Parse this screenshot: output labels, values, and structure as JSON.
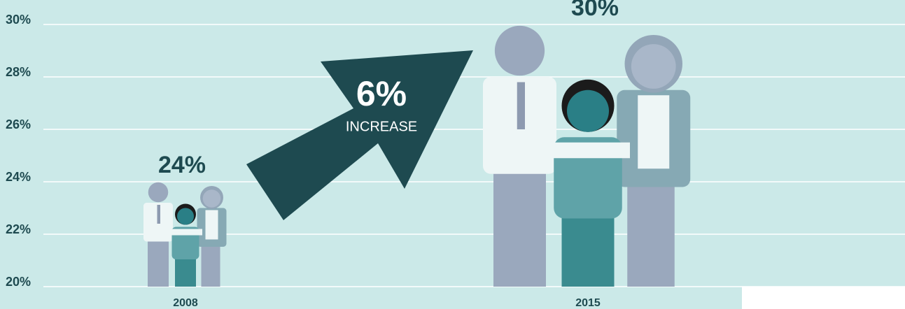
{
  "chart_data": {
    "type": "pictograph",
    "categories": [
      "2008",
      "2015"
    ],
    "values": [
      24,
      30
    ],
    "value_labels": [
      "24%",
      "30%"
    ],
    "ylim": [
      20,
      30
    ],
    "yticks": [
      {
        "value": 20,
        "label": "20%"
      },
      {
        "value": 22,
        "label": "22%"
      },
      {
        "value": 24,
        "label": "24%"
      },
      {
        "value": 26,
        "label": "26%"
      },
      {
        "value": 28,
        "label": "28%"
      },
      {
        "value": 30,
        "label": "30%"
      }
    ],
    "grid": true,
    "annotations": [
      "6%",
      "INCREASE"
    ]
  }
}
